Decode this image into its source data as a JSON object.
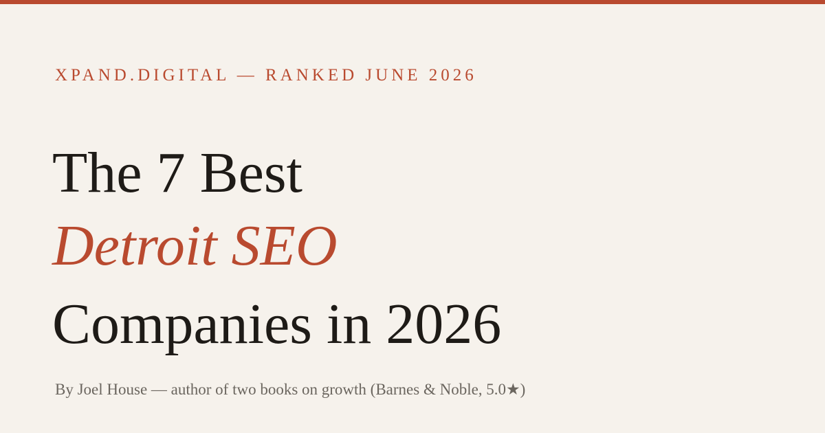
{
  "eyebrow": "XPAND.DIGITAL — RANKED JUNE 2026",
  "title": {
    "line1": "The 7 Best",
    "line2": "Detroit SEO",
    "line3": "Companies in 2026"
  },
  "byline": "By Joel House — author of two books on growth (Barnes & Noble, 5.0★)"
}
